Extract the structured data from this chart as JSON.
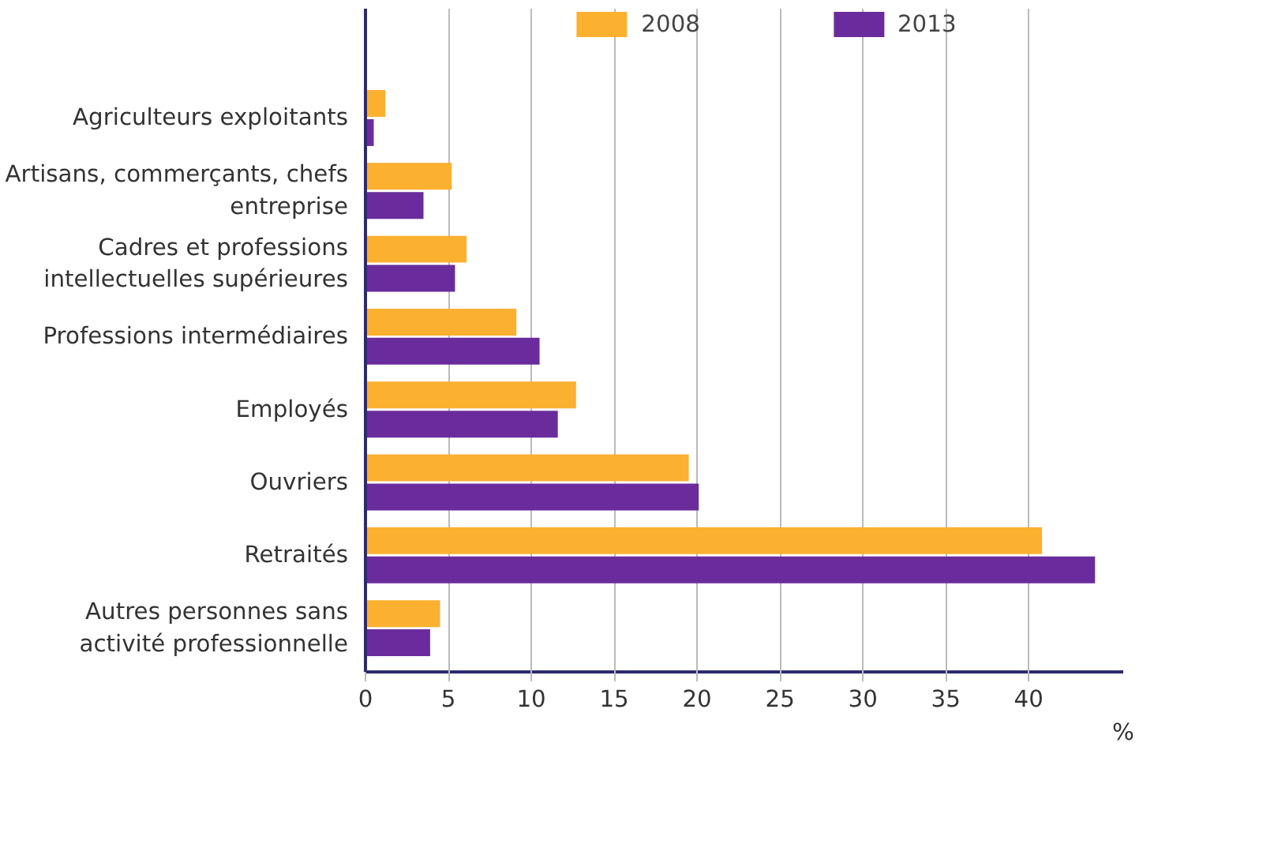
{
  "chart_data": {
    "type": "bar",
    "orientation": "horizontal",
    "categories": [
      "Agriculteurs exploitants",
      "Artisans, commerçants, chefs entreprise",
      "Cadres et professions intellectuelles supérieures",
      "Professions intermédiaires",
      "Employés",
      "Ouvriers",
      "Retraités",
      "Autres personnes sans activité professionnelle"
    ],
    "series": [
      {
        "name": "2008",
        "color": "#fbb030",
        "values": [
          1.2,
          5.2,
          6.1,
          9.1,
          12.7,
          19.5,
          40.8,
          4.5
        ]
      },
      {
        "name": "2013",
        "color": "#6a2c9c",
        "values": [
          0.5,
          3.5,
          5.4,
          10.5,
          11.6,
          20.1,
          44.0,
          3.9
        ]
      }
    ],
    "xlim": [
      0,
      45.7
    ],
    "xticks": [
      0,
      5,
      10,
      15,
      20,
      25,
      30,
      35,
      40
    ],
    "grid": "x",
    "legend": "top",
    "annotations": [
      "%"
    ]
  }
}
